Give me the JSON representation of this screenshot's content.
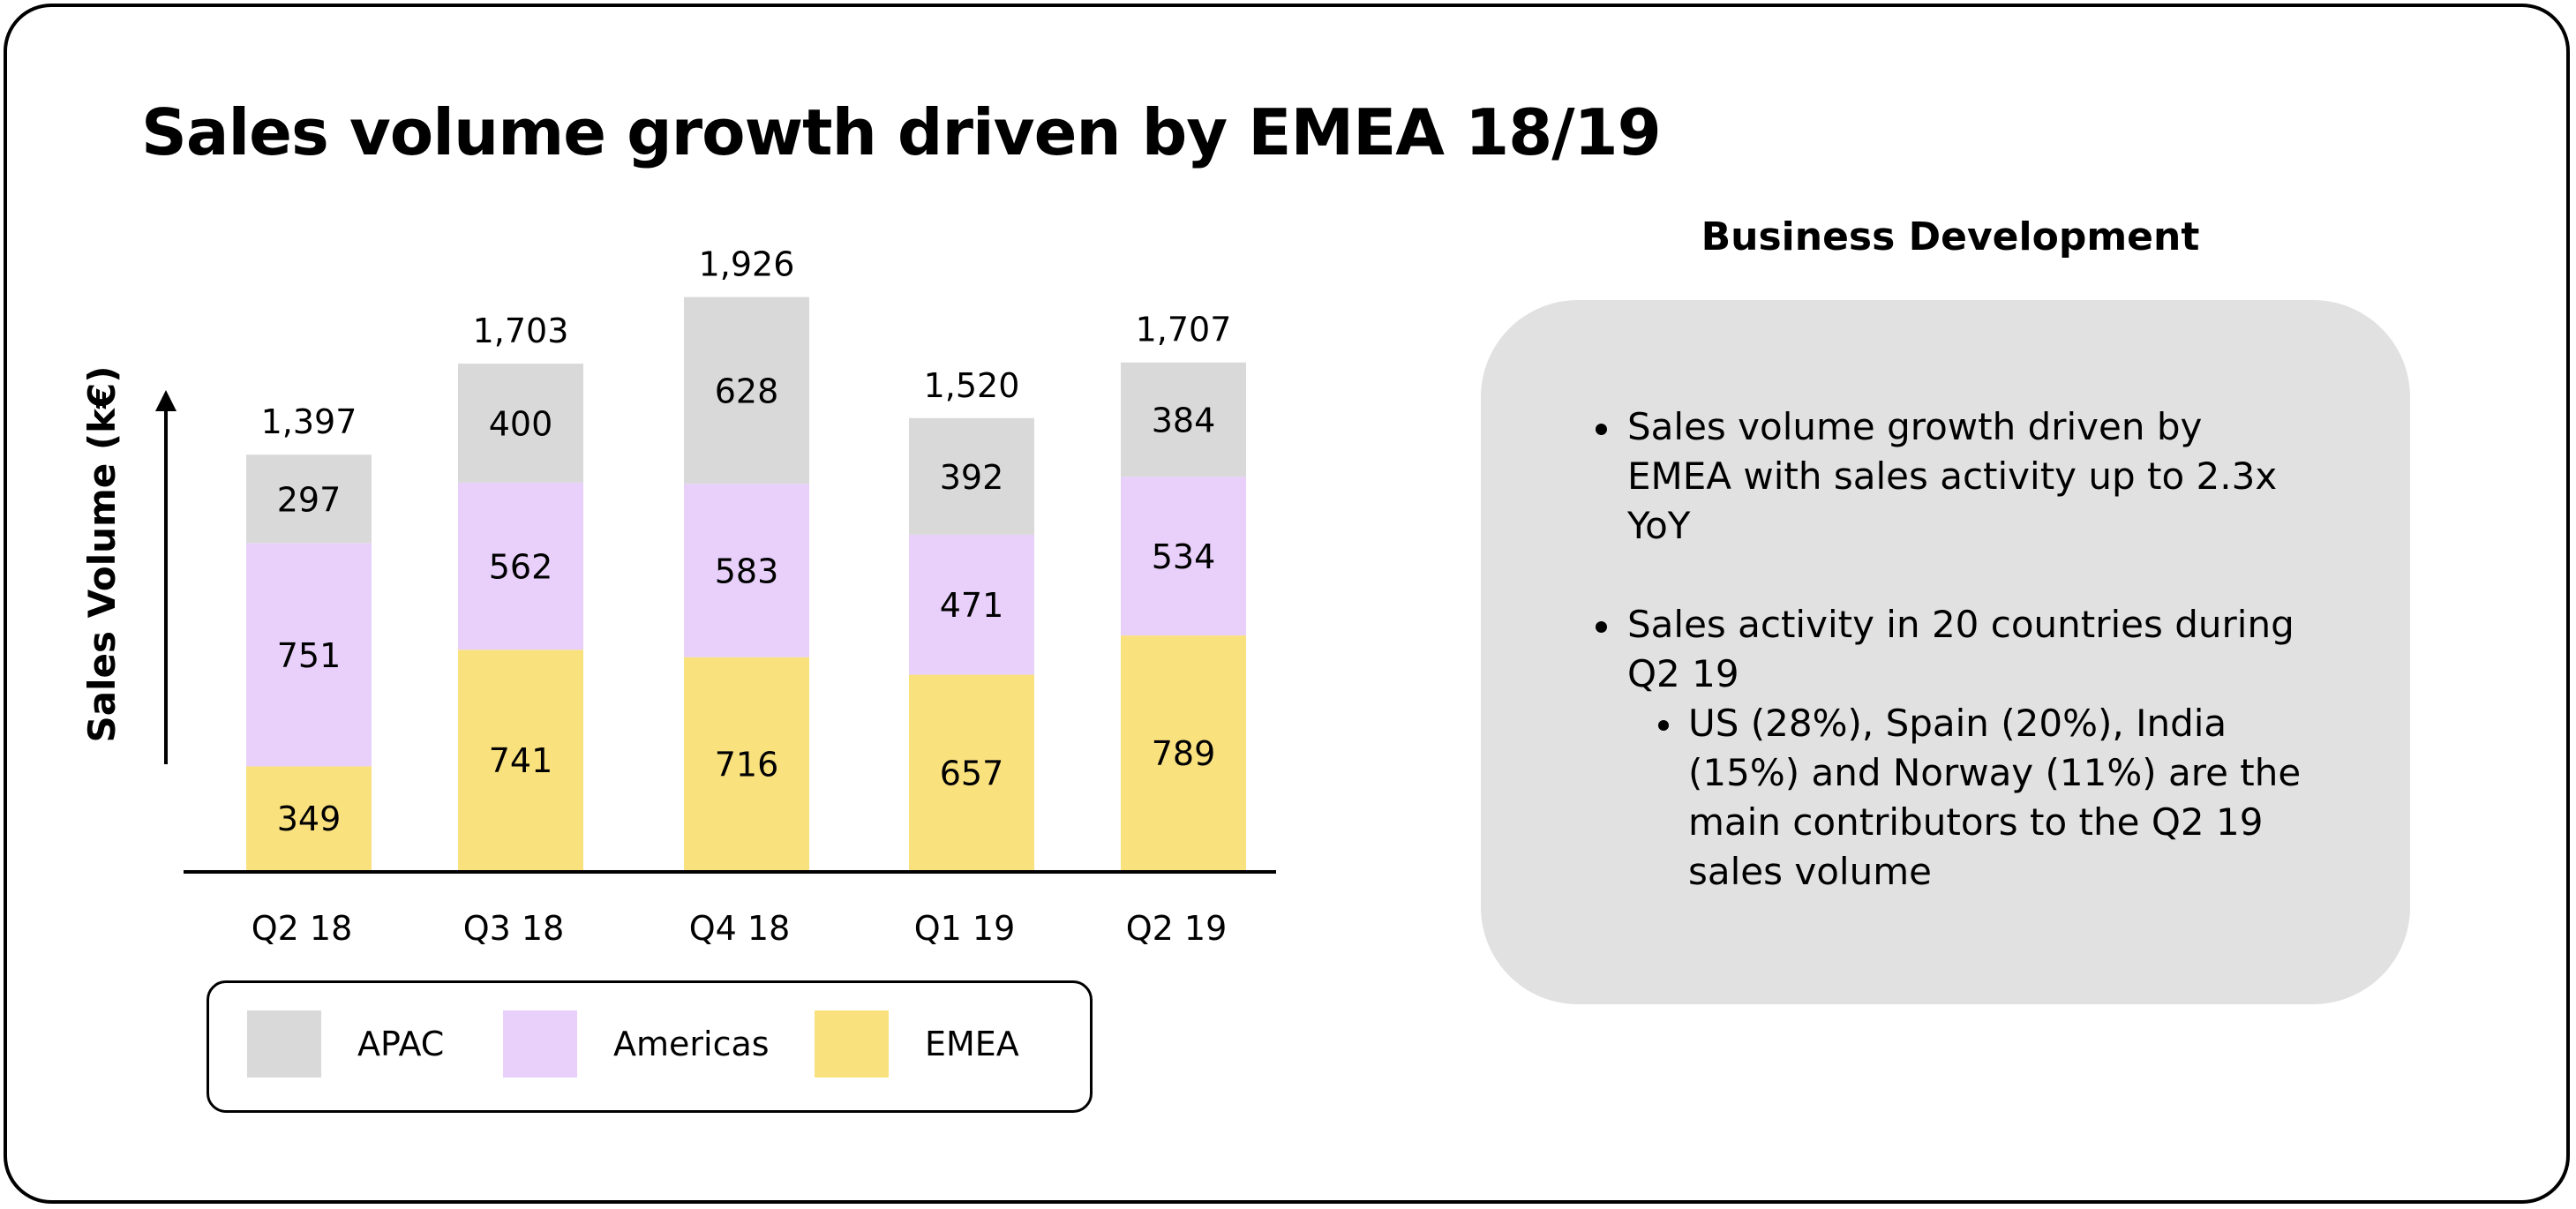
{
  "title": "Sales volume growth driven by EMEA 18/19",
  "colors": {
    "APAC": "#d9d9d9",
    "Americas": "#e8d0fa",
    "EMEA": "#f9e17e",
    "panel": "#e1e1e1"
  },
  "chart_data": {
    "type": "bar",
    "stacked": true,
    "ylabel": "Sales Volume (k€)",
    "categories": [
      "Q2 18",
      "Q3 18",
      "Q4 18",
      "Q1 19",
      "Q2 19"
    ],
    "series": [
      {
        "name": "EMEA",
        "values": [
          349,
          741,
          716,
          657,
          789
        ]
      },
      {
        "name": "Americas",
        "values": [
          751,
          562,
          583,
          471,
          534
        ]
      },
      {
        "name": "APAC",
        "values": [
          297,
          400,
          628,
          392,
          384
        ]
      }
    ],
    "totals": [
      "1,397",
      "1,703",
      "1,926",
      "1,520",
      "1,707"
    ],
    "legend": [
      "APAC",
      "Americas",
      "EMEA"
    ],
    "legend_position": "bottom"
  },
  "panel": {
    "title": "Business Development",
    "bullets": [
      {
        "lines": [
          "Sales volume growth driven by",
          "EMEA with sales activity up to 2.3x",
          "YoY"
        ]
      },
      {
        "lines": [
          "Sales activity in 20 countries during",
          "Q2 19"
        ]
      }
    ],
    "sub_bullets": [
      {
        "lines": [
          "US (28%), Spain (20%), India",
          "(15%) and Norway (11%) are the",
          "main contributors to the Q2 19",
          "sales volume"
        ]
      }
    ]
  }
}
